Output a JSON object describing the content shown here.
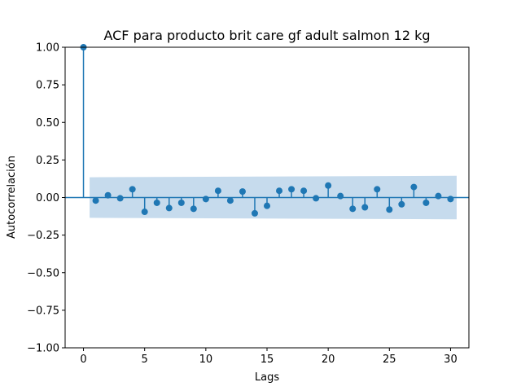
{
  "chart_data": {
    "type": "scatter",
    "subtype": "acf-stem",
    "title": "ACF para producto brit care gf adult salmon 12 kg",
    "xlabel": "Lags",
    "ylabel": "Autocorrelación",
    "xlim": [
      -1.5,
      31.5
    ],
    "ylim": [
      -1.0,
      1.0
    ],
    "x_ticks": [
      0,
      5,
      10,
      15,
      20,
      25,
      30
    ],
    "x_tick_labels": [
      "0",
      "5",
      "10",
      "15",
      "20",
      "25",
      "30"
    ],
    "y_ticks": [
      1.0,
      0.75,
      0.5,
      0.25,
      0.0,
      -0.25,
      -0.5,
      -0.75,
      -1.0
    ],
    "y_tick_labels": [
      "1.00",
      "0.75",
      "0.50",
      "0.25",
      "0.00",
      "−0.25",
      "−0.50",
      "−0.75",
      "−1.00"
    ],
    "grid": false,
    "series": [
      {
        "x": [
          0,
          1,
          2,
          3,
          4,
          5,
          6,
          7,
          8,
          9,
          10,
          11,
          12,
          13,
          14,
          15,
          16,
          17,
          18,
          19,
          20,
          21,
          22,
          23,
          24,
          25,
          26,
          27,
          28,
          29,
          30
        ],
        "values": [
          1.0,
          -0.02,
          0.015,
          -0.005,
          0.055,
          -0.095,
          -0.035,
          -0.07,
          -0.035,
          -0.075,
          -0.01,
          0.045,
          -0.02,
          0.04,
          -0.105,
          -0.055,
          0.045,
          0.055,
          0.045,
          -0.005,
          0.08,
          0.01,
          -0.075,
          -0.065,
          0.055,
          -0.08,
          -0.045,
          0.07,
          -0.035,
          0.01,
          -0.01
        ]
      }
    ],
    "confidence_band": {
      "x": [
        0.5,
        30.5
      ],
      "upper": [
        0.135,
        0.145
      ],
      "lower": [
        -0.135,
        -0.145
      ]
    },
    "colors": {
      "stem": "#1f77b4",
      "band": "#c6dbed"
    }
  }
}
